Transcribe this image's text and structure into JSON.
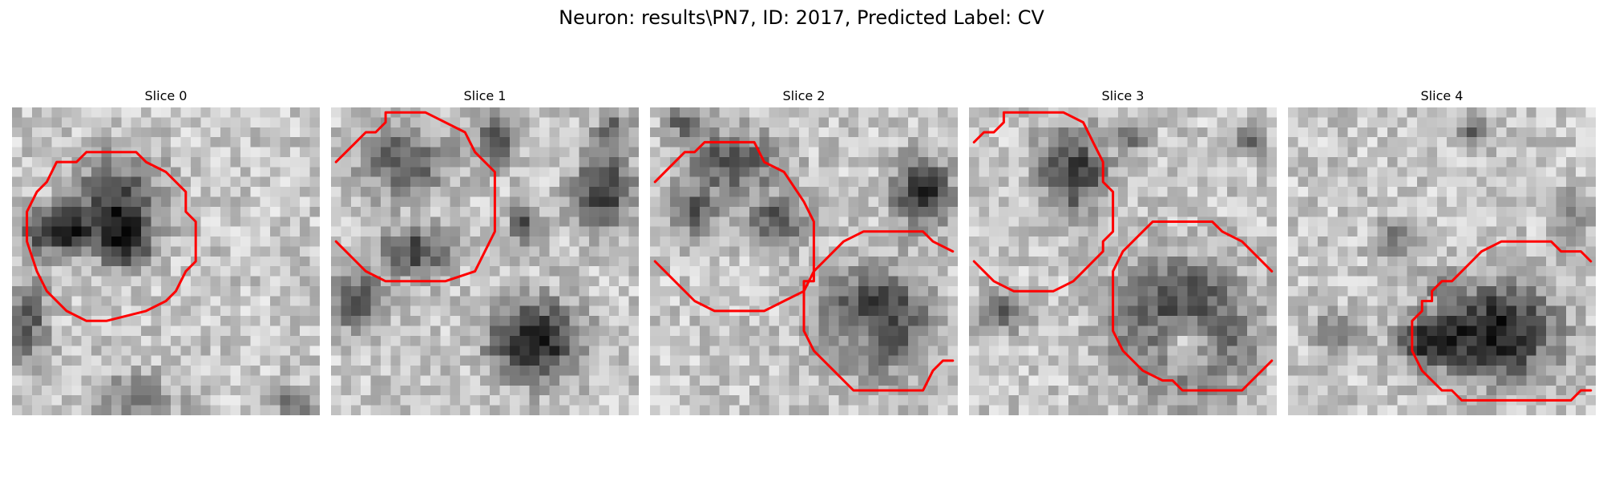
{
  "figure": {
    "title": "Neuron: results\\PN7, ID: 2017, Predicted Label: CV",
    "grid_size": 31,
    "colormap": "gray",
    "contour_color": "#ff0000",
    "panels": [
      {
        "label": "Slice 0",
        "blobs": [
          {
            "cx": 10,
            "cy": 9,
            "rx": 4.5,
            "ry": 4.5,
            "dark": 0.5
          },
          {
            "cx": 4,
            "cy": 12,
            "rx": 3.5,
            "ry": 2.2,
            "dark": 0.75
          },
          {
            "cx": 11,
            "cy": 13,
            "rx": 2.5,
            "ry": 3,
            "dark": 0.55
          },
          {
            "cx": 1,
            "cy": 21,
            "rx": 2,
            "ry": 4,
            "dark": 0.45
          },
          {
            "cx": 12,
            "cy": 29,
            "rx": 4,
            "ry": 2.5,
            "dark": 0.35
          },
          {
            "cx": 28,
            "cy": 29,
            "rx": 2,
            "ry": 1.5,
            "dark": 0.4
          }
        ],
        "contours": [
          [
            [
              7,
              4
            ],
            [
              12,
              4
            ],
            [
              13,
              5
            ],
            [
              15,
              6
            ],
            [
              17,
              8
            ],
            [
              17,
              10
            ],
            [
              18,
              11
            ],
            [
              18,
              15
            ],
            [
              17,
              16
            ],
            [
              16,
              18
            ],
            [
              15,
              19
            ],
            [
              13,
              20
            ],
            [
              9,
              21
            ],
            [
              7,
              21
            ],
            [
              5,
              20
            ],
            [
              3,
              18
            ],
            [
              2,
              16
            ],
            [
              1,
              13
            ],
            [
              1,
              10
            ],
            [
              2,
              8
            ],
            [
              3,
              7
            ],
            [
              4,
              5
            ],
            [
              6,
              5
            ]
          ]
        ]
      },
      {
        "label": "Slice 1",
        "blobs": [
          {
            "cx": 7,
            "cy": 5,
            "rx": 4.5,
            "ry": 3.5,
            "dark": 0.45
          },
          {
            "cx": 8,
            "cy": 14,
            "rx": 3.5,
            "ry": 2.5,
            "dark": 0.5
          },
          {
            "cx": 2,
            "cy": 19,
            "rx": 3,
            "ry": 3,
            "dark": 0.45
          },
          {
            "cx": 16,
            "cy": 3,
            "rx": 2,
            "ry": 2.5,
            "dark": 0.5
          },
          {
            "cx": 27,
            "cy": 8,
            "rx": 3,
            "ry": 3.5,
            "dark": 0.6
          },
          {
            "cx": 19,
            "cy": 11,
            "rx": 1.5,
            "ry": 2,
            "dark": 0.5
          },
          {
            "cx": 20,
            "cy": 23,
            "rx": 4.5,
            "ry": 4,
            "dark": 0.7
          },
          {
            "cx": 28,
            "cy": 2,
            "rx": 2,
            "ry": 2,
            "dark": 0.4
          }
        ],
        "contours": [
          [
            [
              0,
              5
            ],
            [
              2,
              3
            ],
            [
              3,
              2
            ],
            [
              4,
              2
            ],
            [
              5,
              1
            ],
            [
              5,
              0
            ],
            [
              9,
              0
            ],
            [
              13,
              2
            ],
            [
              14,
              4
            ],
            [
              16,
              6
            ],
            [
              16,
              8
            ],
            [
              16,
              12
            ],
            [
              15,
              14
            ],
            [
              14,
              16
            ],
            [
              11,
              17
            ],
            [
              5,
              17
            ],
            [
              3,
              16
            ],
            [
              2,
              15
            ],
            [
              0,
              13
            ]
          ]
        ]
      },
      {
        "label": "Slice 2",
        "blobs": [
          {
            "cx": 8,
            "cy": 5,
            "rx": 4.5,
            "ry": 3,
            "dark": 0.5
          },
          {
            "cx": 4,
            "cy": 10,
            "rx": 2.5,
            "ry": 2.5,
            "dark": 0.4
          },
          {
            "cx": 12,
            "cy": 11,
            "rx": 3,
            "ry": 2.5,
            "dark": 0.45
          },
          {
            "cx": 27,
            "cy": 8,
            "rx": 3,
            "ry": 3.5,
            "dark": 0.65
          },
          {
            "cx": 22,
            "cy": 21,
            "rx": 5,
            "ry": 5,
            "dark": 0.7
          },
          {
            "cx": 21,
            "cy": 22,
            "rx": 2.5,
            "ry": 2.5,
            "dark": -0.4
          },
          {
            "cx": 3,
            "cy": 1,
            "rx": 2,
            "ry": 1.5,
            "dark": 0.4
          }
        ],
        "contours": [
          [
            [
              0,
              7
            ],
            [
              2,
              5
            ],
            [
              3,
              4
            ],
            [
              4,
              4
            ],
            [
              5,
              3
            ],
            [
              10,
              3
            ],
            [
              11,
              5
            ],
            [
              13,
              6
            ],
            [
              15,
              9
            ],
            [
              16,
              11
            ],
            [
              16,
              16
            ],
            [
              15,
              18
            ],
            [
              13,
              19
            ],
            [
              11,
              20
            ],
            [
              6,
              20
            ],
            [
              4,
              19
            ],
            [
              2,
              17
            ],
            [
              0,
              15
            ]
          ],
          [
            [
              30,
              14
            ],
            [
              28,
              13
            ],
            [
              27,
              12
            ],
            [
              21,
              12
            ],
            [
              19,
              13
            ],
            [
              17,
              15
            ],
            [
              16,
              16
            ],
            [
              16,
              17
            ],
            [
              15,
              17
            ],
            [
              15,
              22
            ],
            [
              16,
              24
            ],
            [
              18,
              26
            ],
            [
              20,
              28
            ],
            [
              21,
              28
            ],
            [
              22,
              28
            ],
            [
              27,
              28
            ],
            [
              28,
              26
            ],
            [
              29,
              25
            ],
            [
              30,
              25
            ]
          ]
        ]
      },
      {
        "label": "Slice 3",
        "blobs": [
          {
            "cx": 10,
            "cy": 6,
            "rx": 3.5,
            "ry": 4.5,
            "dark": 0.55
          },
          {
            "cx": 21,
            "cy": 22,
            "rx": 6,
            "ry": 6,
            "dark": 0.85
          },
          {
            "cx": 21,
            "cy": 23,
            "rx": 3.5,
            "ry": 3.5,
            "dark": -0.8
          },
          {
            "cx": 3,
            "cy": 20,
            "rx": 2.5,
            "ry": 2,
            "dark": 0.35
          },
          {
            "cx": 16,
            "cy": 2,
            "rx": 1.5,
            "ry": 1.5,
            "dark": 0.4
          },
          {
            "cx": 28,
            "cy": 3,
            "rx": 1.5,
            "ry": 1.5,
            "dark": 0.4
          }
        ],
        "contours": [
          [
            [
              0,
              3
            ],
            [
              1,
              2
            ],
            [
              2,
              2
            ],
            [
              3,
              1
            ],
            [
              3,
              0
            ],
            [
              9,
              0
            ],
            [
              11,
              1
            ],
            [
              12,
              3
            ],
            [
              13,
              5
            ],
            [
              13,
              7
            ],
            [
              14,
              8
            ],
            [
              14,
              12
            ],
            [
              13,
              13
            ],
            [
              13,
              14
            ],
            [
              11,
              16
            ],
            [
              10,
              17
            ],
            [
              8,
              18
            ],
            [
              4,
              18
            ],
            [
              2,
              17
            ],
            [
              1,
              16
            ],
            [
              0,
              15
            ]
          ],
          [
            [
              30,
              16
            ],
            [
              28,
              14
            ],
            [
              27,
              13
            ],
            [
              25,
              12
            ],
            [
              24,
              11
            ],
            [
              18,
              11
            ],
            [
              17,
              12
            ],
            [
              16,
              13
            ],
            [
              15,
              14
            ],
            [
              14,
              16
            ],
            [
              14,
              22
            ],
            [
              15,
              24
            ],
            [
              17,
              26
            ],
            [
              19,
              27
            ],
            [
              20,
              27
            ],
            [
              21,
              28
            ],
            [
              27,
              28
            ],
            [
              28,
              27
            ],
            [
              29,
              26
            ],
            [
              30,
              25
            ]
          ]
        ]
      },
      {
        "label": "Slice 4",
        "blobs": [
          {
            "cx": 21,
            "cy": 22,
            "rx": 5.5,
            "ry": 5,
            "dark": 0.7
          },
          {
            "cx": 14,
            "cy": 23,
            "rx": 3.5,
            "ry": 2.5,
            "dark": 0.65
          },
          {
            "cx": 10,
            "cy": 13,
            "rx": 2,
            "ry": 2,
            "dark": 0.35
          },
          {
            "cx": 18,
            "cy": 2,
            "rx": 2,
            "ry": 1.5,
            "dark": 0.4
          },
          {
            "cx": 4,
            "cy": 22,
            "rx": 2.5,
            "ry": 2,
            "dark": 0.3
          },
          {
            "cx": 28,
            "cy": 10,
            "rx": 2,
            "ry": 2.5,
            "dark": 0.35
          },
          {
            "cx": 15,
            "cy": 17,
            "rx": 2,
            "ry": 1.5,
            "dark": 0.3
          }
        ],
        "contours": [
          [
            [
              30,
              15
            ],
            [
              29,
              14
            ],
            [
              27,
              14
            ],
            [
              26,
              13
            ],
            [
              21,
              13
            ],
            [
              19,
              14
            ],
            [
              18,
              15
            ],
            [
              17,
              16
            ],
            [
              16,
              17
            ],
            [
              15,
              17
            ],
            [
              14,
              18
            ],
            [
              14,
              19
            ],
            [
              13,
              19
            ],
            [
              13,
              20
            ],
            [
              12,
              21
            ],
            [
              12,
              24
            ],
            [
              13,
              26
            ],
            [
              15,
              28
            ],
            [
              16,
              28
            ],
            [
              17,
              29
            ],
            [
              28,
              29
            ],
            [
              29,
              28
            ],
            [
              30,
              28
            ]
          ]
        ]
      }
    ]
  }
}
